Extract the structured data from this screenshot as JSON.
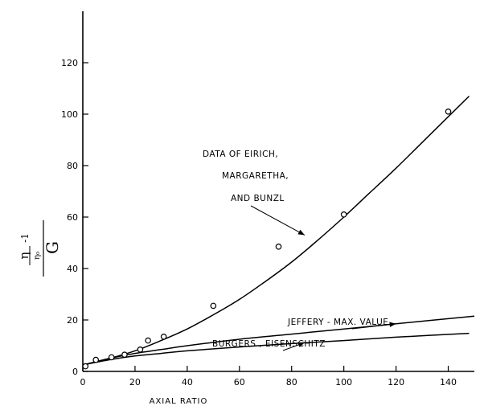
{
  "chart_data": {
    "type": "scatter",
    "title": "",
    "xlabel": "AXIAL RATIO",
    "ylabel": {
      "numerator_symbol": "η",
      "numerator_sub_symbol": "η₀",
      "numerator_minus": "-1",
      "denominator": "G"
    },
    "xlim": [
      0,
      150
    ],
    "ylim": [
      0,
      140
    ],
    "x_ticks": [
      0,
      20,
      40,
      60,
      80,
      100,
      120,
      140
    ],
    "y_ticks": [
      0,
      20,
      40,
      60,
      80,
      100,
      120
    ],
    "grid": false,
    "legend": "none",
    "series": [
      {
        "name": "DATA OF EIRICH, MARGARETHA, AND BUNZL",
        "kind": "points",
        "marker": "open-circle",
        "points": [
          [
            1,
            2
          ],
          [
            5,
            4.5
          ],
          [
            11,
            5.5
          ],
          [
            16,
            6.5
          ],
          [
            22,
            8.5
          ],
          [
            25,
            12
          ],
          [
            31,
            13.5
          ],
          [
            50,
            25.5
          ],
          [
            75,
            48.5
          ],
          [
            100,
            61
          ],
          [
            140,
            101
          ]
        ]
      },
      {
        "name": "DATA OF EIRICH, MARGARETHA, AND BUNZL",
        "kind": "curve",
        "points": [
          [
            0,
            2.5
          ],
          [
            10,
            5
          ],
          [
            20,
            8
          ],
          [
            30,
            12
          ],
          [
            40,
            16.5
          ],
          [
            50,
            22
          ],
          [
            60,
            28
          ],
          [
            70,
            35
          ],
          [
            80,
            42.5
          ],
          [
            90,
            51
          ],
          [
            100,
            60
          ],
          [
            110,
            69.5
          ],
          [
            120,
            79
          ],
          [
            130,
            89
          ],
          [
            140,
            99
          ],
          [
            148,
            107
          ]
        ]
      },
      {
        "name": "JEFFERY - MAX. VALUE",
        "kind": "curve",
        "points": [
          [
            0,
            2.5
          ],
          [
            10,
            5
          ],
          [
            20,
            7
          ],
          [
            30,
            8.5
          ],
          [
            40,
            10
          ],
          [
            60,
            12.5
          ],
          [
            80,
            14.5
          ],
          [
            100,
            16.5
          ],
          [
            120,
            18.5
          ],
          [
            150,
            21.5
          ]
        ]
      },
      {
        "name": "BURGERS, EISENSCHITZ",
        "kind": "curve",
        "points": [
          [
            0,
            2.5
          ],
          [
            10,
            4.5
          ],
          [
            20,
            6
          ],
          [
            30,
            7
          ],
          [
            40,
            8
          ],
          [
            60,
            9.5
          ],
          [
            80,
            10.8
          ],
          [
            100,
            12
          ],
          [
            120,
            13.3
          ],
          [
            148,
            14.8
          ]
        ]
      }
    ],
    "annotations": [
      {
        "lines": [
          "DATA OF EIRICH,",
          "MARGARETHA,",
          "AND BUNZL"
        ],
        "arrow_to": [
          85,
          53
        ]
      },
      {
        "lines": [
          "JEFFERY - MAX. VALUE"
        ],
        "arrow_to": [
          120,
          18.5
        ]
      },
      {
        "lines": [
          "BURGERS , EISENSCHITZ"
        ],
        "arrow_to": [
          85,
          11.2
        ]
      }
    ]
  }
}
